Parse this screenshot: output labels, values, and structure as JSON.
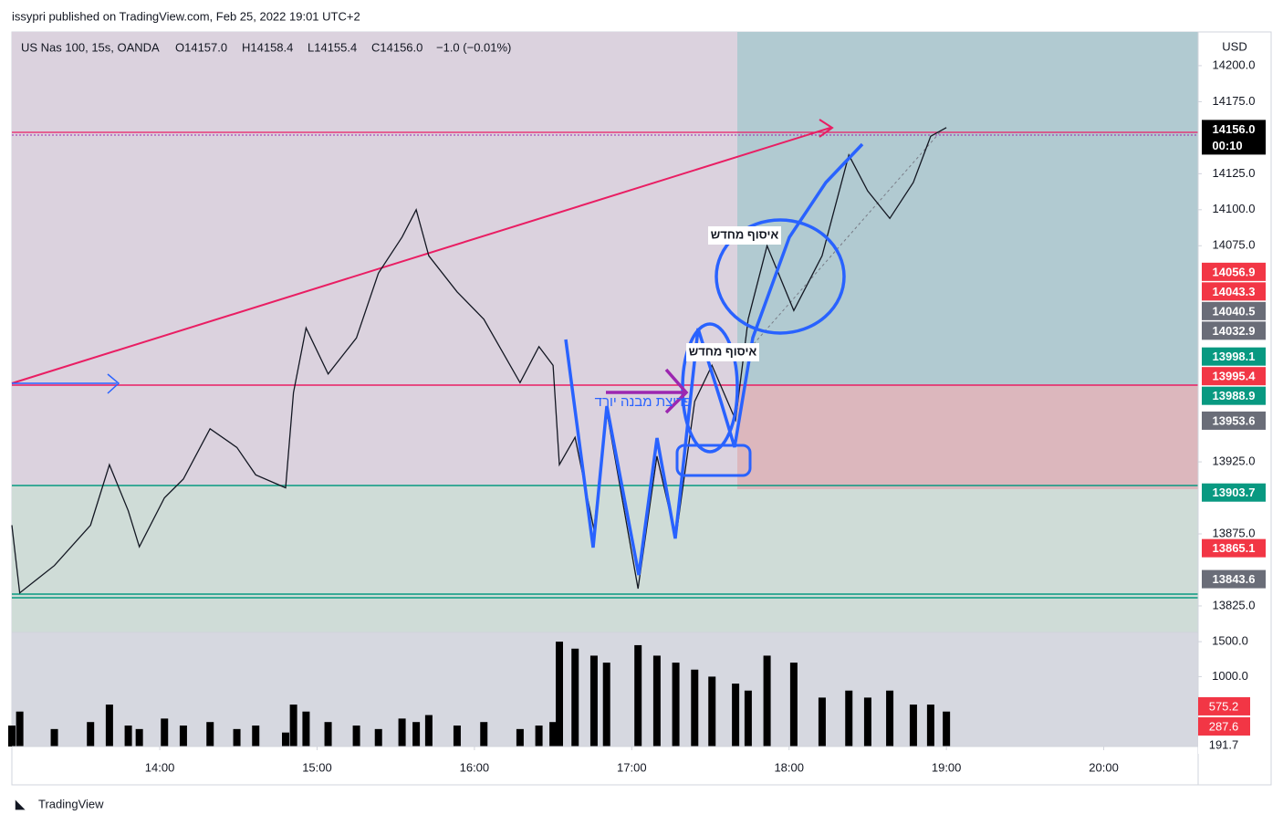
{
  "header": {
    "byline": "issypri published on TradingView.com, Feb 25, 2022 19:01 UTC+2"
  },
  "legend": {
    "symbol": "US Nas 100, 15s, OANDA",
    "open": "O14157.0",
    "high": "H14158.4",
    "low": "L14155.4",
    "close": "C14156.0",
    "change": "−1.0 (−0.01%)"
  },
  "annotations": [
    "איסוף מחדש",
    "איסוף מחדש",
    "פריצת מבנה יורד"
  ],
  "footer": "TradingView",
  "chart_data": {
    "type": "line",
    "currency": "USD",
    "color": "#131722",
    "x": [
      13.06,
      13.11,
      13.33,
      13.56,
      13.68,
      13.8,
      13.87,
      14.03,
      14.15,
      14.32,
      14.49,
      14.61,
      14.8,
      14.85,
      14.93,
      15.07,
      15.25,
      15.39,
      15.54,
      15.63,
      15.71,
      15.89,
      16.06,
      16.29,
      16.41,
      16.5,
      16.54,
      16.64,
      16.76,
      16.84,
      17.04,
      17.16,
      17.28,
      17.4,
      17.51,
      17.66,
      17.74,
      17.86,
      18.03,
      18.21,
      18.38,
      18.5,
      18.64,
      18.79,
      18.9,
      19.0
    ],
    "values": [
      13881,
      13834,
      13853,
      13881,
      13923,
      13891,
      13866,
      13900,
      13913,
      13948,
      13935,
      13916,
      13907,
      13973,
      14018,
      13986,
      14011,
      14056,
      14081,
      14100,
      14068,
      14043,
      14024,
      13980,
      14005,
      13992,
      13923,
      13942,
      13878,
      13961,
      13837,
      13929,
      13872,
      13967,
      13992,
      13954,
      14024,
      14075,
      14030,
      14068,
      14138,
      14113,
      14094,
      14119,
      14151,
      14157
    ],
    "volume": [
      300,
      500,
      250,
      350,
      600,
      300,
      250,
      400,
      300,
      350,
      250,
      300,
      200,
      600,
      500,
      350,
      300,
      250,
      400,
      350,
      450,
      300,
      350,
      250,
      300,
      350,
      1500,
      1400,
      1300,
      1200,
      1450,
      1300,
      1200,
      1100,
      1000,
      900,
      800,
      1300,
      1200,
      700,
      800,
      700,
      800,
      600,
      600,
      500
    ],
    "xlim": [
      13.06,
      20.6
    ],
    "xticks": [
      {
        "value": 14,
        "label": "14:00"
      },
      {
        "value": 15,
        "label": "15:00"
      },
      {
        "value": 16,
        "label": "16:00"
      },
      {
        "value": 17,
        "label": "17:00"
      },
      {
        "value": 18,
        "label": "18:00"
      },
      {
        "value": 19,
        "label": "19:00"
      },
      {
        "value": 20,
        "label": "20:00"
      }
    ],
    "ylim": [
      13806.6,
      14223.4
    ],
    "yticks": [
      {
        "value": 14200,
        "label": "14200.0"
      },
      {
        "value": 14175,
        "label": "14175.0"
      },
      {
        "value": 14125,
        "label": "14125.0"
      },
      {
        "value": 14100,
        "label": "14100.0"
      },
      {
        "value": 14075,
        "label": "14075.0"
      },
      {
        "value": 13925,
        "label": "13925.0"
      },
      {
        "value": 13875,
        "label": "13875.0"
      },
      {
        "value": 13825,
        "label": "13825.0"
      }
    ],
    "vlim": [
      0,
      1632
    ],
    "vticks": [
      {
        "value": 1500,
        "label": "1500.0"
      },
      {
        "value": 1000,
        "label": "1000.0"
      }
    ],
    "price_labels": [
      {
        "value": 14156.0,
        "label": "14156.0",
        "color": "#000000",
        "countdown": "00:10"
      },
      {
        "value": 14056.9,
        "label": "14056.9",
        "color": "#f23645"
      },
      {
        "value": 14043.3,
        "label": "14043.3",
        "color": "#f23645"
      },
      {
        "value": 14040.5,
        "label": "14040.5",
        "color": "#6a6d78"
      },
      {
        "value": 14032.9,
        "label": "14032.9",
        "color": "#6a6d78"
      },
      {
        "value": 13998.1,
        "label": "13998.1",
        "color": "#089981"
      },
      {
        "value": 13995.4,
        "label": "13995.4",
        "color": "#f23645"
      },
      {
        "value": 13988.9,
        "label": "13988.9",
        "color": "#089981"
      },
      {
        "value": 13953.6,
        "label": "13953.6",
        "color": "#6a6d78"
      },
      {
        "value": 13903.7,
        "label": "13903.7",
        "color": "#089981"
      },
      {
        "value": 13865.1,
        "label": "13865.1",
        "color": "#f23645"
      },
      {
        "value": 13843.6,
        "label": "13843.6",
        "color": "#6a6d78"
      }
    ],
    "volume_labels": [
      {
        "value": 575.2,
        "label": "575.2",
        "color": "#f23645"
      },
      {
        "value": 287.6,
        "label": "287.6",
        "color": "#f23645"
      },
      {
        "value": 191.7,
        "label": "191.7",
        "color": "#ffffff"
      }
    ]
  }
}
